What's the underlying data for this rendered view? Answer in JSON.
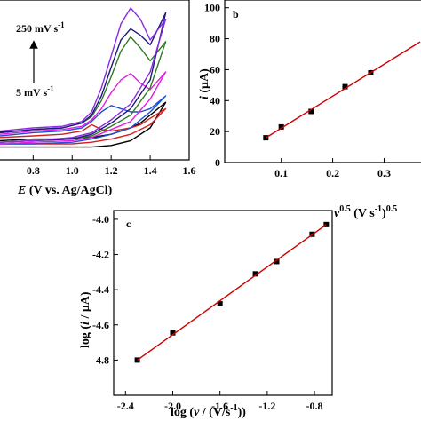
{
  "chart_data": [
    {
      "type": "line",
      "xlabel": [
        "E",
        " (V vs. Ag/AgCl)"
      ],
      "annotations": [
        [
          "250 mV s",
          "-1"
        ],
        [
          "5 mV s",
          "-1"
        ]
      ],
      "xlim": [
        0.63,
        1.6
      ],
      "xticks": [
        {
          "value": 0.8,
          "label": "0.8"
        },
        {
          "value": 1.0,
          "label": "1.0"
        },
        {
          "value": 1.2,
          "label": "1.2"
        },
        {
          "value": 1.4,
          "label": "1.4"
        },
        {
          "value": 1.6,
          "label": "1.6"
        }
      ],
      "ylim": [
        0,
        100
      ],
      "x": [
        0.63,
        0.8,
        0.95,
        1.05,
        1.1,
        1.15,
        1.2,
        1.25,
        1.3,
        1.35,
        1.4,
        1.48,
        1.4,
        1.3,
        1.2,
        1.1,
        1.0,
        0.8,
        0.63
      ],
      "series": [
        {
          "color": "#000000",
          "values": [
            12,
            13,
            13,
            14,
            14,
            15,
            16,
            18,
            20,
            23,
            28,
            36,
            20,
            12,
            9,
            8,
            8,
            8,
            8
          ]
        },
        {
          "color": "#d42020",
          "values": [
            14,
            15,
            16,
            18,
            22,
            19,
            18,
            19,
            20,
            22,
            26,
            32,
            22,
            16,
            13,
            11,
            10,
            10,
            10
          ]
        },
        {
          "color": "#2050d0",
          "values": [
            15,
            17,
            18,
            20,
            24,
            30,
            34,
            32,
            30,
            30,
            32,
            40,
            30,
            20,
            16,
            13,
            11,
            10,
            10
          ]
        },
        {
          "color": "#e020e0",
          "values": [
            16,
            18,
            19,
            21,
            25,
            32,
            42,
            50,
            54,
            48,
            44,
            55,
            38,
            24,
            19,
            14,
            12,
            11,
            10
          ]
        },
        {
          "color": "#2f7a25",
          "values": [
            17,
            19,
            20,
            23,
            27,
            37,
            52,
            68,
            77,
            70,
            62,
            74,
            45,
            28,
            21,
            15,
            13,
            12,
            11
          ]
        },
        {
          "color": "#1a1a7a",
          "values": [
            17,
            19,
            20,
            23,
            28,
            40,
            58,
            75,
            82,
            78,
            72,
            92,
            50,
            32,
            23,
            16,
            13,
            12,
            11
          ]
        },
        {
          "color": "#8a2be2",
          "values": [
            18,
            20,
            21,
            24,
            30,
            45,
            65,
            85,
            95,
            88,
            75,
            88,
            55,
            35,
            25,
            17,
            14,
            12,
            11
          ]
        }
      ]
    },
    {
      "type": "scatter",
      "title": "b",
      "ylabel": [
        "i",
        " (μA)"
      ],
      "xlabel": [
        "v",
        "0.5",
        " (V s",
        "-1",
        ")",
        "0.5"
      ],
      "xlim": [
        -0.01,
        0.37
      ],
      "xticks": [
        0.1,
        0.2,
        0.3
      ],
      "ylim": [
        0,
        105
      ],
      "yticks": [
        0,
        20,
        40,
        60,
        80,
        100
      ],
      "series": [
        {
          "color": "#000000",
          "marker": "square",
          "x": [
            0.07,
            0.1,
            0.158,
            0.224,
            0.274
          ],
          "values": [
            16,
            23,
            33,
            49,
            58
          ]
        },
        {
          "color": "#d00000",
          "x": [
            0.07,
            0.37
          ],
          "values": [
            16,
            78
          ]
        }
      ]
    },
    {
      "type": "scatter",
      "title": "c",
      "ylabel": [
        "log (",
        "i",
        " / μA)"
      ],
      "xlabel": [
        "log (",
        "v",
        " / (V/s",
        "-1",
        "))"
      ],
      "xlim": [
        -2.5,
        -0.65
      ],
      "xticks": [
        -2.4,
        {
          "value": -2.0,
          "label": "-2.0"
        },
        -1.6,
        -1.2,
        -0.8
      ],
      "ylim": [
        -5.0,
        -3.95
      ],
      "yticks": [
        {
          "value": -4.8,
          "label": "-4.8"
        },
        {
          "value": -4.6,
          "label": "-4.6"
        },
        {
          "value": -4.4,
          "label": "-4.4"
        },
        {
          "value": -4.2,
          "label": "-4.2"
        },
        {
          "value": -4.0,
          "label": "-4.0"
        }
      ],
      "series": [
        {
          "color": "#000000",
          "marker": "square",
          "x": [
            -2.3,
            -2.0,
            -1.6,
            -1.3,
            -1.12,
            -0.82,
            -0.7
          ],
          "values": [
            -4.8,
            -4.645,
            -4.48,
            -4.31,
            -4.24,
            -4.085,
            -4.03
          ]
        },
        {
          "color": "#d00000",
          "x": [
            -2.3,
            -0.7
          ],
          "values": [
            -4.8,
            -4.03
          ]
        }
      ]
    }
  ]
}
